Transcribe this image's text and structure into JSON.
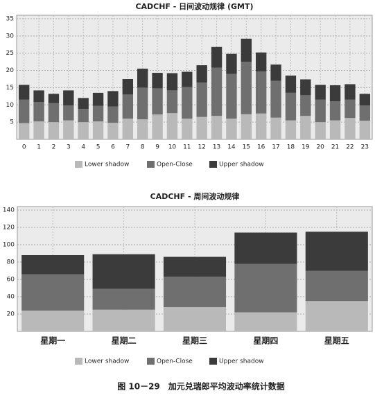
{
  "chart_data": [
    {
      "type": "bar",
      "stacked": true,
      "title": "CADCHF - 日间波动规律 (GMT)",
      "categories": [
        "0",
        "1",
        "2",
        "3",
        "4",
        "5",
        "6",
        "7",
        "8",
        "9",
        "10",
        "11",
        "12",
        "13",
        "14",
        "15",
        "16",
        "17",
        "18",
        "19",
        "20",
        "21",
        "22",
        "23"
      ],
      "series": [
        {
          "name": "Lower shadow",
          "color": "#b9b9b9",
          "values": [
            4.7,
            5.2,
            5.0,
            5.5,
            5.0,
            5.2,
            4.8,
            6.0,
            5.8,
            7.2,
            7.6,
            6.0,
            6.5,
            6.8,
            6.0,
            7.3,
            7.5,
            6.3,
            5.5,
            6.8,
            5.0,
            5.5,
            6.2,
            5.4
          ]
        },
        {
          "name": "Open-Close",
          "color": "#6f6f6f",
          "values": [
            6.8,
            5.6,
            5.5,
            4.3,
            3.8,
            4.5,
            4.7,
            7.0,
            9.2,
            7.6,
            6.6,
            9.2,
            10.0,
            14.0,
            13.0,
            15.2,
            12.2,
            10.7,
            8.0,
            6.0,
            6.5,
            5.5,
            5.3,
            4.4
          ]
        },
        {
          "name": "Upper shadow",
          "color": "#3b3b3b",
          "values": [
            4.3,
            3.4,
            2.7,
            4.4,
            3.2,
            3.8,
            4.5,
            4.5,
            5.5,
            4.5,
            5.0,
            4.4,
            5.0,
            6.0,
            5.8,
            6.7,
            5.5,
            4.7,
            5.0,
            4.6,
            4.3,
            4.7,
            4.5,
            3.4
          ]
        }
      ],
      "ylim": [
        0,
        36
      ],
      "yticks": [
        5,
        10,
        15,
        20,
        25,
        30,
        35
      ],
      "grid": true
    },
    {
      "type": "bar",
      "stacked": true,
      "title": "CADCHF - 周间波动规律",
      "categories": [
        "星期一",
        "星期二",
        "星期三",
        "星期四",
        "星期五"
      ],
      "series": [
        {
          "name": "Lower shadow",
          "color": "#b9b9b9",
          "values": [
            24,
            25,
            28,
            22,
            35
          ]
        },
        {
          "name": "Open-Close",
          "color": "#6f6f6f",
          "values": [
            42,
            24,
            35,
            56,
            35
          ]
        },
        {
          "name": "Upper shadow",
          "color": "#3b3b3b",
          "values": [
            22,
            40,
            23,
            36,
            45
          ]
        }
      ],
      "ylim": [
        0,
        144
      ],
      "yticks": [
        20,
        40,
        60,
        80,
        100,
        120,
        140
      ],
      "grid": true
    }
  ],
  "caption": "图 10－29　加元兑瑞郎平均波动率统计数据"
}
